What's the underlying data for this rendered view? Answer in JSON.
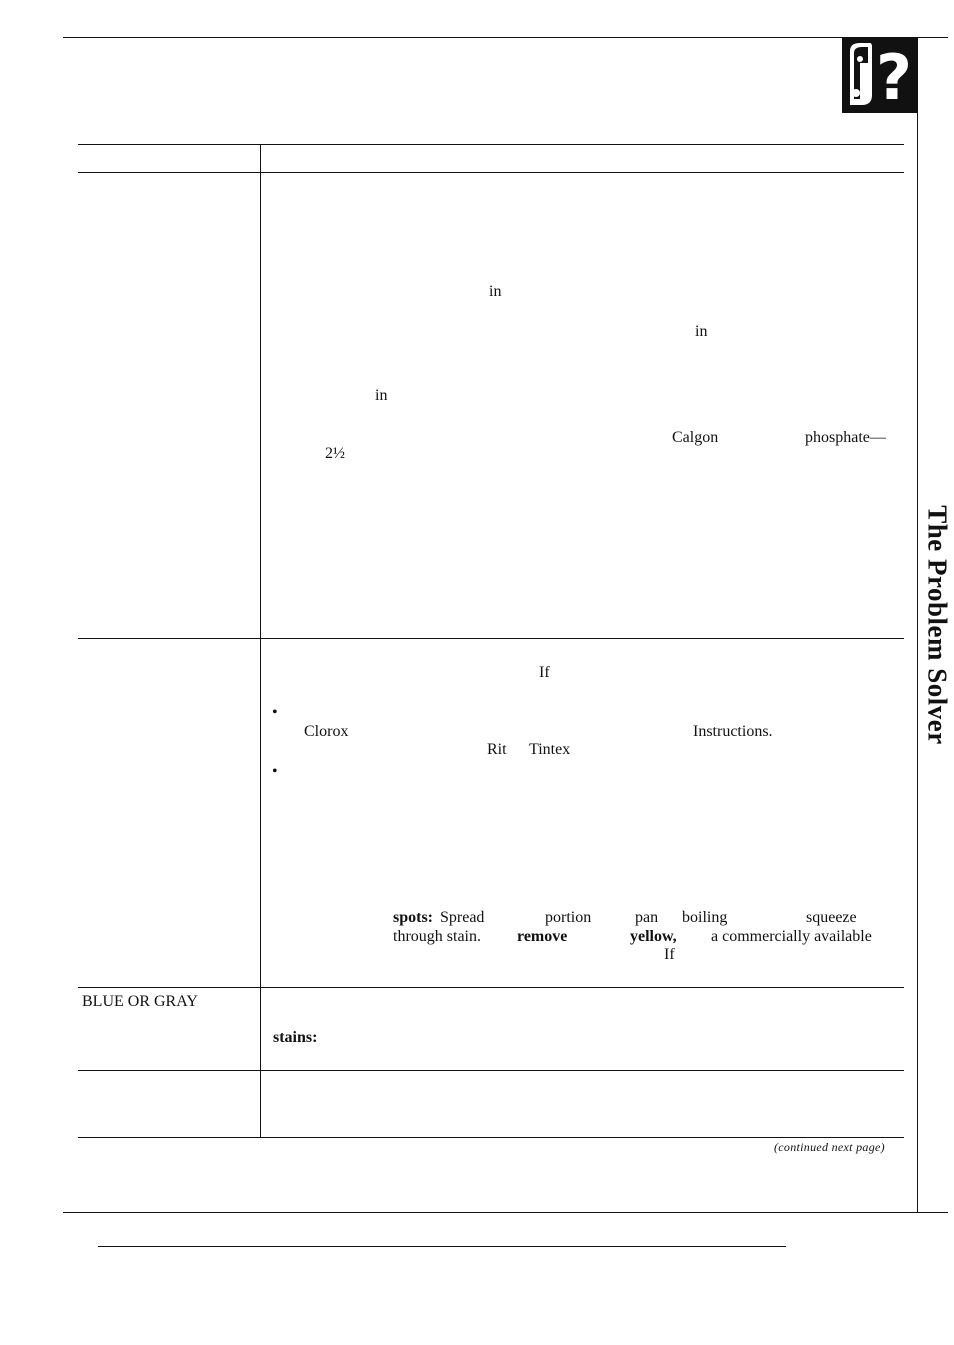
{
  "header": {
    "logo_icon": "question-mark-logo-icon",
    "logo_glyph": "?"
  },
  "side_title": "The Problem Solver",
  "left_column": {
    "blue_gray_label": "BLUE OR GRAY"
  },
  "text_fragments": [
    {
      "id": "in-1",
      "text": "in"
    },
    {
      "id": "in-2",
      "text": "in"
    },
    {
      "id": "in-3",
      "text": "in"
    },
    {
      "id": "calgon",
      "text": "Calgon"
    },
    {
      "id": "phosphate",
      "text": "phosphate—"
    },
    {
      "id": "two-half",
      "text": "2½"
    },
    {
      "id": "if-1",
      "text": "If"
    },
    {
      "id": "clorox",
      "text": "Clorox"
    },
    {
      "id": "instructions",
      "text": "Instructions."
    },
    {
      "id": "rit",
      "text": "Rit"
    },
    {
      "id": "tintex",
      "text": "Tintex"
    },
    {
      "id": "spots",
      "text": "spots:"
    },
    {
      "id": "spread",
      "text": "Spread"
    },
    {
      "id": "portion",
      "text": "portion"
    },
    {
      "id": "pan",
      "text": "pan"
    },
    {
      "id": "boiling",
      "text": "boiling"
    },
    {
      "id": "squeeze",
      "text": "squeeze"
    },
    {
      "id": "through-stain",
      "text": "through stain."
    },
    {
      "id": "remove",
      "text": "remove"
    },
    {
      "id": "yellow",
      "text": "yellow,"
    },
    {
      "id": "commercially",
      "text": "a commercially available"
    },
    {
      "id": "if-2",
      "text": "If"
    },
    {
      "id": "stains",
      "text": "stains:"
    }
  ],
  "bullets": [
    "•",
    "•"
  ],
  "footer": {
    "continued": "(continued next page)"
  }
}
